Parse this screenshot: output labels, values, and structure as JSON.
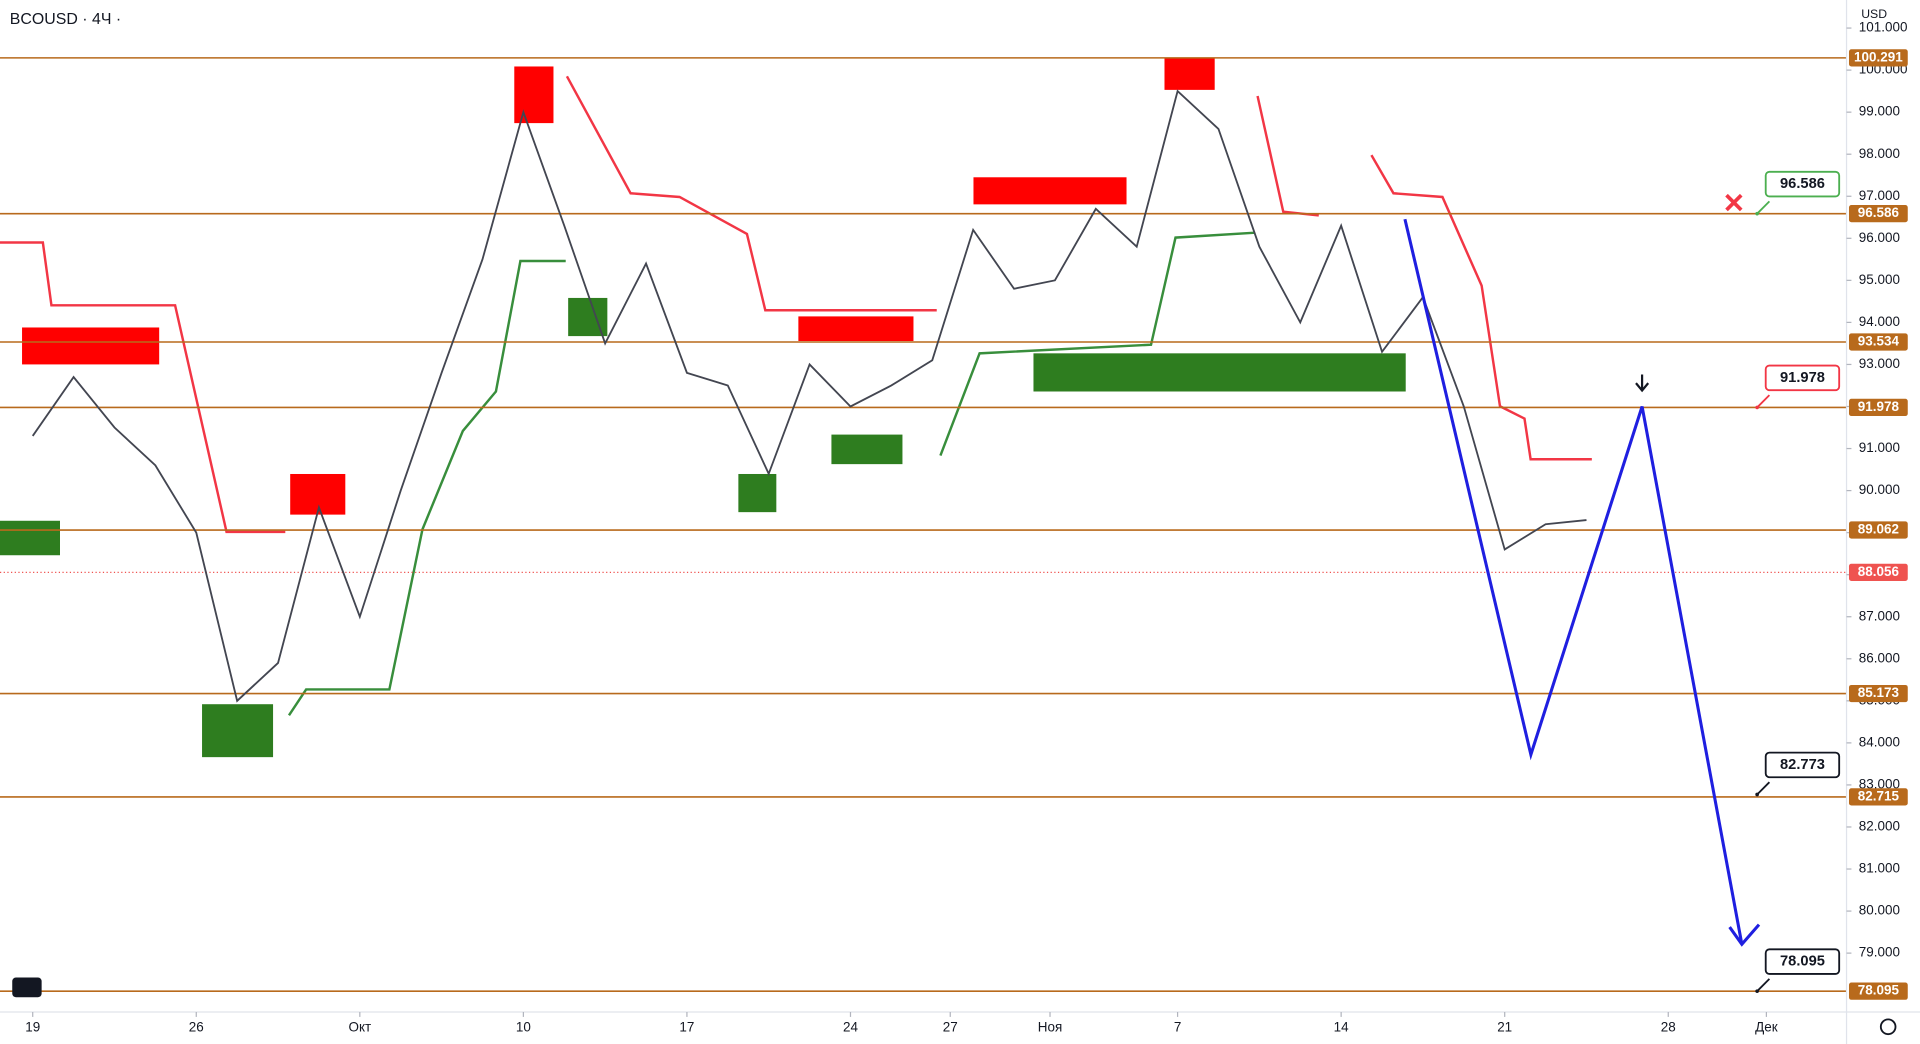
{
  "chart_data": {
    "type": "line",
    "title": "BCOUSD · 4Ч ·",
    "currency": "USD",
    "color": "#434651",
    "x": [
      0,
      0.25,
      0.5,
      0.75,
      1,
      1.25,
      1.5,
      1.75,
      2,
      2.25,
      2.5,
      2.75,
      3,
      3.25,
      3.5,
      3.75,
      4,
      4.25,
      4.5,
      4.75,
      5,
      5.25,
      5.5,
      5.75,
      6,
      6.25,
      6.5,
      6.75,
      7,
      7.25,
      7.5,
      7.75,
      8,
      8.25,
      8.5,
      8.75,
      9,
      9.25,
      9.5
    ],
    "values": [
      91.3,
      92.7,
      91.5,
      90.6,
      89.0,
      85.0,
      85.9,
      89.6,
      87.0,
      90.0,
      92.8,
      95.5,
      99.0,
      96.3,
      93.5,
      95.4,
      92.8,
      92.5,
      90.4,
      93.0,
      92.0,
      92.5,
      93.1,
      96.2,
      94.8,
      95.0,
      96.7,
      95.8,
      99.5,
      98.6,
      95.8,
      94.0,
      96.3,
      93.3,
      94.6,
      92.0,
      88.6,
      89.2,
      89.3
    ],
    "xlim": [
      -0.2,
      11.09
    ],
    "ylim": [
      77.6,
      101.6
    ],
    "xticks": [
      {
        "value": 0,
        "label": "19"
      },
      {
        "value": 1,
        "label": "26"
      },
      {
        "value": 2,
        "label": "Окт"
      },
      {
        "value": 3,
        "label": "10"
      },
      {
        "value": 4,
        "label": "17"
      },
      {
        "value": 5,
        "label": "24"
      },
      {
        "value": 5.61,
        "label": "27"
      },
      {
        "value": 6.22,
        "label": "Ноя"
      },
      {
        "value": 7,
        "label": "7"
      },
      {
        "value": 8,
        "label": "14"
      },
      {
        "value": 9,
        "label": "21"
      },
      {
        "value": 10,
        "label": "28"
      },
      {
        "value": 10.6,
        "label": "Дек"
      }
    ],
    "yticks": [
      {
        "value": 79,
        "label": "79.000"
      },
      {
        "value": 80,
        "label": "80.000"
      },
      {
        "value": 81,
        "label": "81.000"
      },
      {
        "value": 82,
        "label": "82.000"
      },
      {
        "value": 83,
        "label": "83.000"
      },
      {
        "value": 84,
        "label": "84.000"
      },
      {
        "value": 85,
        "label": "85.000"
      },
      {
        "value": 86,
        "label": "86.000"
      },
      {
        "value": 87,
        "label": "87.000"
      },
      {
        "value": 88,
        "label": "88.000"
      },
      {
        "value": 89,
        "label": "89.000"
      },
      {
        "value": 90,
        "label": "90.000"
      },
      {
        "value": 91,
        "label": "91.000"
      },
      {
        "value": 92,
        "label": "92.000"
      },
      {
        "value": 93,
        "label": "93.000"
      },
      {
        "value": 94,
        "label": "94.000"
      },
      {
        "value": 95,
        "label": "95.000"
      },
      {
        "value": 96,
        "label": "96.000"
      },
      {
        "value": 97,
        "label": "97.000"
      },
      {
        "value": 98,
        "label": "98.000"
      },
      {
        "value": 99,
        "label": "99.000"
      },
      {
        "value": 100,
        "label": "100.000"
      },
      {
        "value": 101,
        "label": "101.000"
      }
    ],
    "levels": [
      100.291,
      96.586,
      93.534,
      91.978,
      89.062,
      85.173,
      82.715,
      78.095
    ],
    "level_color": "#b86a1c",
    "current_price": 88.056,
    "current_color": "#ef5350",
    "projection": {
      "x": [
        8.39,
        9.16,
        9.84,
        10.45
      ],
      "values": [
        96.455,
        83.72,
        92.0,
        79.21
      ],
      "color": "#1f1fe0"
    },
    "callouts": [
      {
        "value": 96.586,
        "color": "#4caf50"
      },
      {
        "value": 91.978,
        "color": "#f23645"
      },
      {
        "value": 82.773,
        "color": "#131722"
      },
      {
        "value": 78.095,
        "color": "#131722"
      }
    ]
  }
}
